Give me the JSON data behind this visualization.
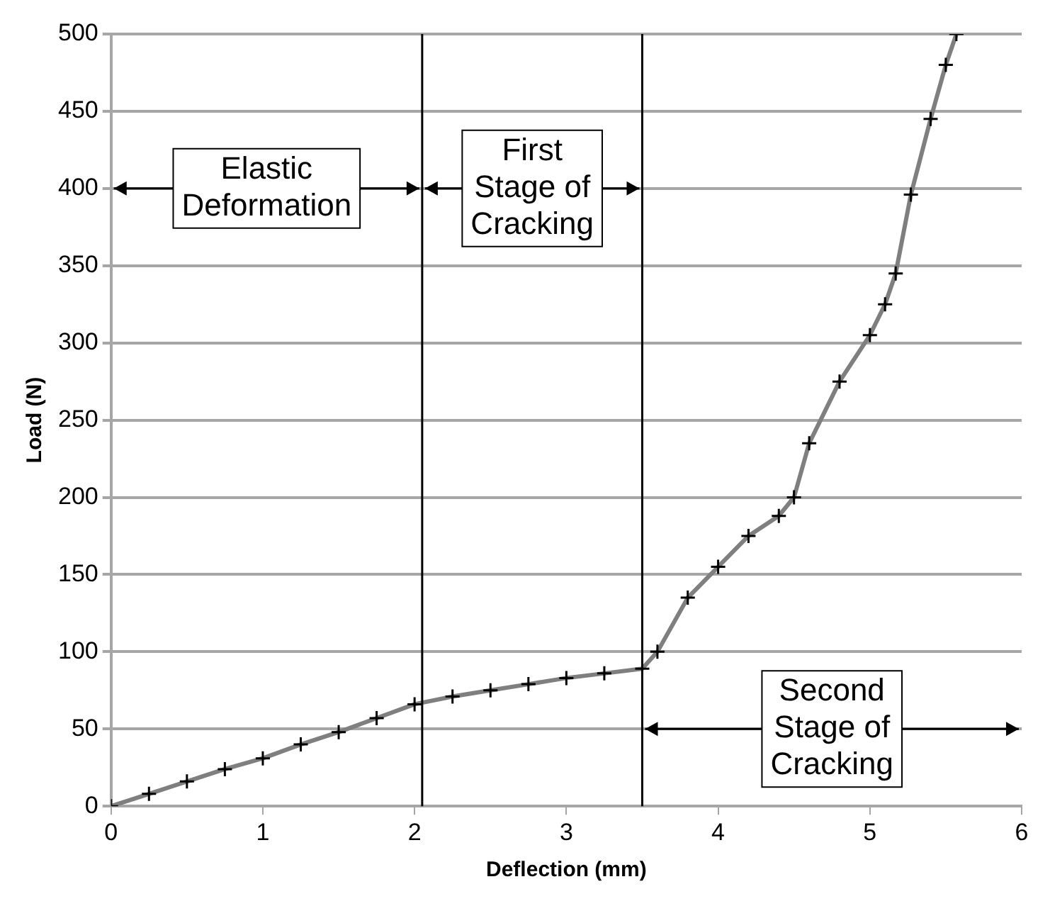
{
  "chart_data": {
    "type": "line",
    "xlabel": "Deflection (mm)",
    "ylabel": "Load (N)",
    "x": [
      0,
      0.25,
      0.5,
      0.75,
      1,
      1.25,
      1.5,
      1.75,
      2,
      2.25,
      2.5,
      2.75,
      3,
      3.25,
      3.5,
      3.6,
      3.8,
      4,
      4.2,
      4.4,
      4.5,
      4.6,
      4.8,
      5,
      5.1,
      5.17,
      5.27,
      5.4,
      5.5,
      5.57
    ],
    "series": [
      {
        "color": "#7f7f7f",
        "values": [
          0,
          8,
          16,
          24,
          31,
          40,
          48,
          57,
          66,
          71,
          75,
          79,
          83,
          86,
          89,
          100,
          135,
          155,
          175,
          188,
          200,
          235,
          275,
          305,
          325,
          345,
          396,
          445,
          480,
          500
        ]
      }
    ],
    "xlim": [
      0,
      6
    ],
    "xticks": [
      0,
      1,
      2,
      3,
      4,
      5,
      6
    ],
    "ylim": [
      0,
      500
    ],
    "yticks": [
      0,
      50,
      100,
      150,
      200,
      250,
      300,
      350,
      400,
      450,
      500
    ],
    "grid": "y",
    "legend": false,
    "marker": "cross",
    "line_style": "solid",
    "ref_lines": [
      {
        "axis": "x",
        "value": 2.05,
        "color": "#000000"
      },
      {
        "axis": "x",
        "value": 3.5,
        "color": "#000000"
      }
    ],
    "annotations": [
      "Elastic\nDeformation",
      "First\nStage of\nCracking",
      "Second\nStage of\nCracking"
    ]
  }
}
